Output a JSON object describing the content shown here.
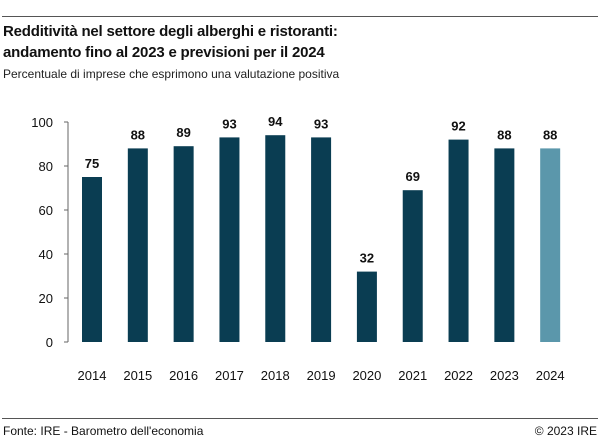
{
  "header": {
    "title_line1": "Redditività nel settore degli alberghi e ristoranti:",
    "title_line2": "andamento fino al 2023 e previsioni per il 2024",
    "subtitle": "Percentuale di imprese che esprimono una valutazione positiva"
  },
  "footer": {
    "source": "Fonte: IRE - Barometro dell'economia",
    "copyright": "© 2023 IRE"
  },
  "colors": {
    "actual": "#0a3d52",
    "forecast": "#5b97ab",
    "axis": "#666666",
    "grid": "#c8c8c8"
  },
  "chart_data": {
    "type": "bar",
    "title": "Redditività nel settore degli alberghi e ristoranti: andamento fino al 2023 e previsioni per il 2024",
    "xlabel": "",
    "ylabel": "",
    "ylim": [
      0,
      100
    ],
    "yticks": [
      0,
      20,
      40,
      60,
      80,
      100
    ],
    "grid": false,
    "categories": [
      "2014",
      "2015",
      "2016",
      "2017",
      "2018",
      "2019",
      "2020",
      "2021",
      "2022",
      "2023",
      "2024"
    ],
    "values": [
      75,
      88,
      89,
      93,
      94,
      93,
      32,
      69,
      92,
      88,
      88
    ],
    "forecast": [
      false,
      false,
      false,
      false,
      false,
      false,
      false,
      false,
      false,
      false,
      true
    ]
  }
}
